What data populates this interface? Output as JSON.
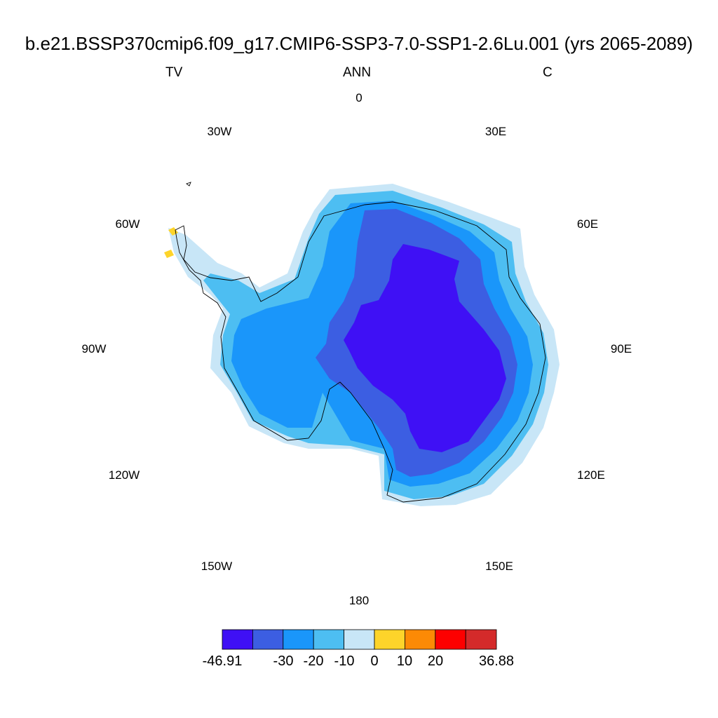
{
  "title": "b.e21.BSSP370cmip6.f09_g17.CMIP6-SSP3-7.0-SSP1-2.6Lu.001 (yrs 2065-2089)",
  "left_label": "TV",
  "center_label": "ANN",
  "right_label": "C",
  "longitude_labels": {
    "lon_0": "0",
    "lon_30e": "30E",
    "lon_60e": "60E",
    "lon_90e": "90E",
    "lon_120e": "120E",
    "lon_150e": "150E",
    "lon_180": "180",
    "lon_150w": "150W",
    "lon_120w": "120W",
    "lon_90w": "90W",
    "lon_60w": "60W",
    "lon_30w": "30W"
  },
  "colorbar": {
    "colors": [
      "#3f10f5",
      "#3c5ee2",
      "#1a96fa",
      "#4dbef2",
      "#c8e6f7",
      "#fdd42a",
      "#fc8a05",
      "#fd0000",
      "#d42a2a"
    ],
    "labels": {
      "min": "-46.91",
      "t1": "-30",
      "t2": "-20",
      "t3": "-10",
      "t4": "0",
      "t5": "10",
      "t6": "20",
      "max": "36.88"
    }
  },
  "map_colors": {
    "ring_outer": "#c8e6f7",
    "ring_2": "#4dbef2",
    "ring_3": "#1a96fa",
    "ring_4": "#3c5ee2",
    "core": "#3f10f5",
    "warm_patch": "#fdd42a",
    "coastline": "#000000"
  }
}
